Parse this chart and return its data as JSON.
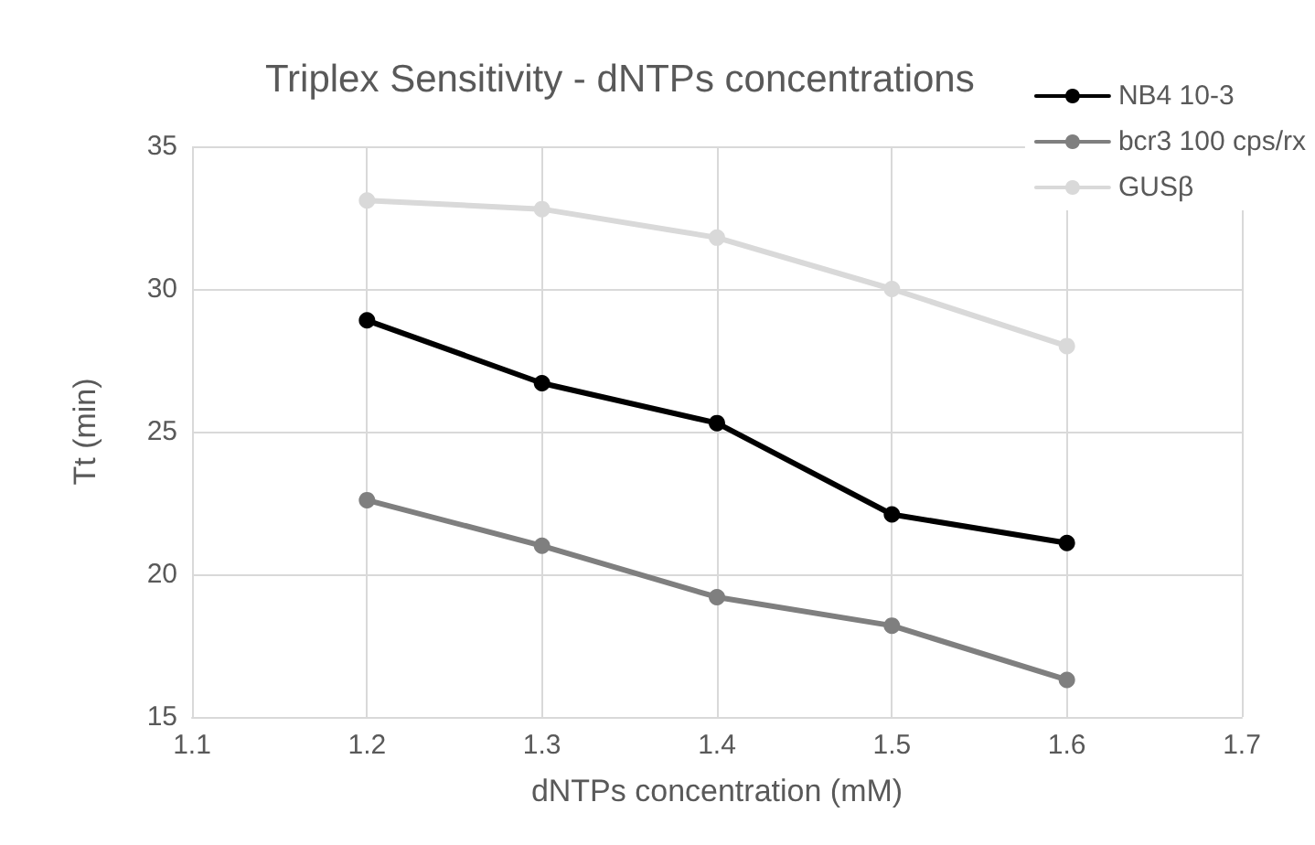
{
  "chart_data": {
    "type": "line",
    "title": "Triplex Sensitivity - dNTPs concentrations",
    "xlabel": "dNTPs concentration (mM)",
    "ylabel": "Tt (min)",
    "x": [
      1.2,
      1.3,
      1.4,
      1.5,
      1.6
    ],
    "series": [
      {
        "name": "NB4 10-3",
        "color": "#000000",
        "values": [
          28.9,
          26.7,
          25.3,
          22.1,
          21.1
        ]
      },
      {
        "name": "bcr3 100 cps/rx",
        "color": "#7f7f7f",
        "values": [
          22.6,
          21.0,
          19.2,
          18.2,
          16.3
        ]
      },
      {
        "name": "GUSβ",
        "color": "#d9d9d9",
        "values": [
          33.1,
          32.8,
          31.8,
          30.0,
          28.0
        ]
      }
    ],
    "xlim": [
      1.1,
      1.7
    ],
    "xticks": [
      1.1,
      1.2,
      1.3,
      1.4,
      1.5,
      1.6,
      1.7
    ],
    "ylim": [
      15,
      35
    ],
    "yticks": [
      15,
      20,
      25,
      30,
      35
    ],
    "grid": true,
    "legend": "top right",
    "marker": "circle",
    "line_style": "solid"
  }
}
